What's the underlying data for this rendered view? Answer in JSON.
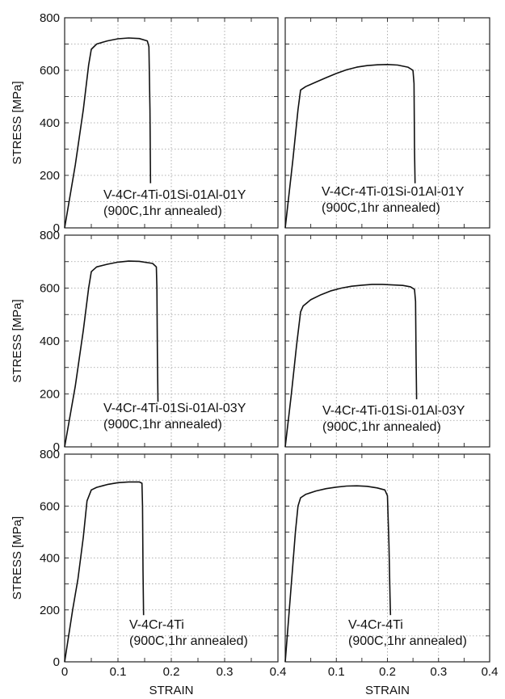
{
  "chart_data": [
    {
      "type": "line",
      "panel": "top-left",
      "ylabel": "STRESS [MPa]",
      "xlabel": "",
      "xlim": [
        0,
        0.4
      ],
      "ylim": [
        0,
        800
      ],
      "yticks": [
        "0",
        "200",
        "400",
        "600",
        "800"
      ],
      "xticks": [],
      "annotation": [
        "V-4Cr-4Ti-01Si-01Al-01Y",
        "(900C,1hr annealed)"
      ],
      "grid": true,
      "series": [
        {
          "points": [
            [
              0,
              0
            ],
            [
              0.02,
              240
            ],
            [
              0.035,
              450
            ],
            [
              0.045,
              620
            ],
            [
              0.05,
              680
            ],
            [
              0.06,
              700
            ],
            [
              0.08,
              712
            ],
            [
              0.1,
              720
            ],
            [
              0.12,
              723
            ],
            [
              0.14,
              721
            ],
            [
              0.155,
              712
            ],
            [
              0.158,
              690
            ],
            [
              0.16,
              450
            ],
            [
              0.161,
              170
            ]
          ]
        }
      ]
    },
    {
      "type": "line",
      "panel": "top-right",
      "ylabel": "",
      "xlabel": "",
      "xlim": [
        0,
        0.4
      ],
      "ylim": [
        0,
        800
      ],
      "yticks": [],
      "xticks": [],
      "annotation": [
        "V-4Cr-4Ti-01Si-01Al-01Y",
        "(900C,1hr annealed)"
      ],
      "grid": true,
      "series": [
        {
          "points": [
            [
              0,
              0
            ],
            [
              0.015,
              260
            ],
            [
              0.025,
              450
            ],
            [
              0.03,
              525
            ],
            [
              0.04,
              538
            ],
            [
              0.06,
              555
            ],
            [
              0.08,
              572
            ],
            [
              0.1,
              588
            ],
            [
              0.12,
              602
            ],
            [
              0.14,
              612
            ],
            [
              0.16,
              618
            ],
            [
              0.18,
              621
            ],
            [
              0.2,
              622
            ],
            [
              0.22,
              620
            ],
            [
              0.24,
              612
            ],
            [
              0.25,
              600
            ],
            [
              0.252,
              550
            ],
            [
              0.253,
              300
            ],
            [
              0.254,
              170
            ]
          ]
        }
      ]
    },
    {
      "type": "line",
      "panel": "middle-left",
      "ylabel": "STRESS [MPa]",
      "xlabel": "",
      "xlim": [
        0,
        0.4
      ],
      "ylim": [
        0,
        800
      ],
      "yticks": [
        "0",
        "200",
        "400",
        "600",
        "800"
      ],
      "xticks": [],
      "annotation": [
        "V-4Cr-4Ti-01Si-01Al-03Y",
        "(900C,1hr annealed)"
      ],
      "grid": true,
      "series": [
        {
          "points": [
            [
              0,
              0
            ],
            [
              0.02,
              230
            ],
            [
              0.035,
              440
            ],
            [
              0.045,
              600
            ],
            [
              0.05,
              662
            ],
            [
              0.06,
              680
            ],
            [
              0.08,
              690
            ],
            [
              0.1,
              698
            ],
            [
              0.12,
              702
            ],
            [
              0.14,
              701
            ],
            [
              0.165,
              693
            ],
            [
              0.172,
              680
            ],
            [
              0.173,
              600
            ],
            [
              0.174,
              350
            ],
            [
              0.175,
              170
            ]
          ]
        }
      ]
    },
    {
      "type": "line",
      "panel": "middle-right",
      "ylabel": "",
      "xlabel": "",
      "xlim": [
        0,
        0.4
      ],
      "ylim": [
        0,
        800
      ],
      "yticks": [],
      "xticks": [],
      "annotation": [
        "V-4Cr-4Ti-01Si-01Al-03Y",
        "(900C,1hr annealed)"
      ],
      "grid": true,
      "series": [
        {
          "points": [
            [
              0,
              0
            ],
            [
              0.012,
              200
            ],
            [
              0.022,
              380
            ],
            [
              0.03,
              510
            ],
            [
              0.035,
              532
            ],
            [
              0.05,
              556
            ],
            [
              0.07,
              575
            ],
            [
              0.09,
              590
            ],
            [
              0.11,
              600
            ],
            [
              0.13,
              607
            ],
            [
              0.15,
              611
            ],
            [
              0.17,
              614
            ],
            [
              0.19,
              614
            ],
            [
              0.21,
              612
            ],
            [
              0.23,
              610
            ],
            [
              0.245,
              605
            ],
            [
              0.253,
              595
            ],
            [
              0.255,
              550
            ],
            [
              0.256,
              350
            ],
            [
              0.257,
              180
            ]
          ]
        }
      ]
    },
    {
      "type": "line",
      "panel": "bottom-left",
      "ylabel": "STRESS [MPa]",
      "xlabel": "STRAIN",
      "xlim": [
        0,
        0.4
      ],
      "ylim": [
        0,
        800
      ],
      "yticks": [
        "0",
        "200",
        "400",
        "600",
        "800"
      ],
      "xticks": [
        "0",
        "0.1",
        "0.2",
        "0.3",
        "0.4"
      ],
      "annotation": [
        "V-4Cr-4Ti",
        "(900C,1hr annealed)"
      ],
      "grid": true,
      "series": [
        {
          "points": [
            [
              0,
              0
            ],
            [
              0.015,
              200
            ],
            [
              0.025,
              320
            ],
            [
              0.035,
              480
            ],
            [
              0.042,
              620
            ],
            [
              0.05,
              662
            ],
            [
              0.06,
              672
            ],
            [
              0.08,
              683
            ],
            [
              0.1,
              690
            ],
            [
              0.12,
              693
            ],
            [
              0.14,
              693
            ],
            [
              0.145,
              688
            ],
            [
              0.146,
              600
            ],
            [
              0.147,
              350
            ],
            [
              0.148,
              180
            ]
          ]
        }
      ]
    },
    {
      "type": "line",
      "panel": "bottom-right",
      "ylabel": "",
      "xlabel": "STRAIN",
      "xlim": [
        0,
        0.4
      ],
      "ylim": [
        0,
        800
      ],
      "yticks": [],
      "xticks": [
        "0.1",
        "0.2",
        "0.3",
        "0.4"
      ],
      "annotation": [
        "V-4Cr-4Ti",
        "(900C,1hr annealed)"
      ],
      "grid": true,
      "series": [
        {
          "points": [
            [
              0,
              0
            ],
            [
              0.01,
              250
            ],
            [
              0.02,
              500
            ],
            [
              0.025,
              600
            ],
            [
              0.03,
              632
            ],
            [
              0.04,
              645
            ],
            [
              0.06,
              658
            ],
            [
              0.08,
              667
            ],
            [
              0.1,
              673
            ],
            [
              0.12,
              677
            ],
            [
              0.14,
              678
            ],
            [
              0.16,
              676
            ],
            [
              0.18,
              670
            ],
            [
              0.195,
              662
            ],
            [
              0.2,
              640
            ],
            [
              0.203,
              450
            ],
            [
              0.205,
              250
            ],
            [
              0.206,
              180
            ]
          ]
        }
      ]
    }
  ]
}
